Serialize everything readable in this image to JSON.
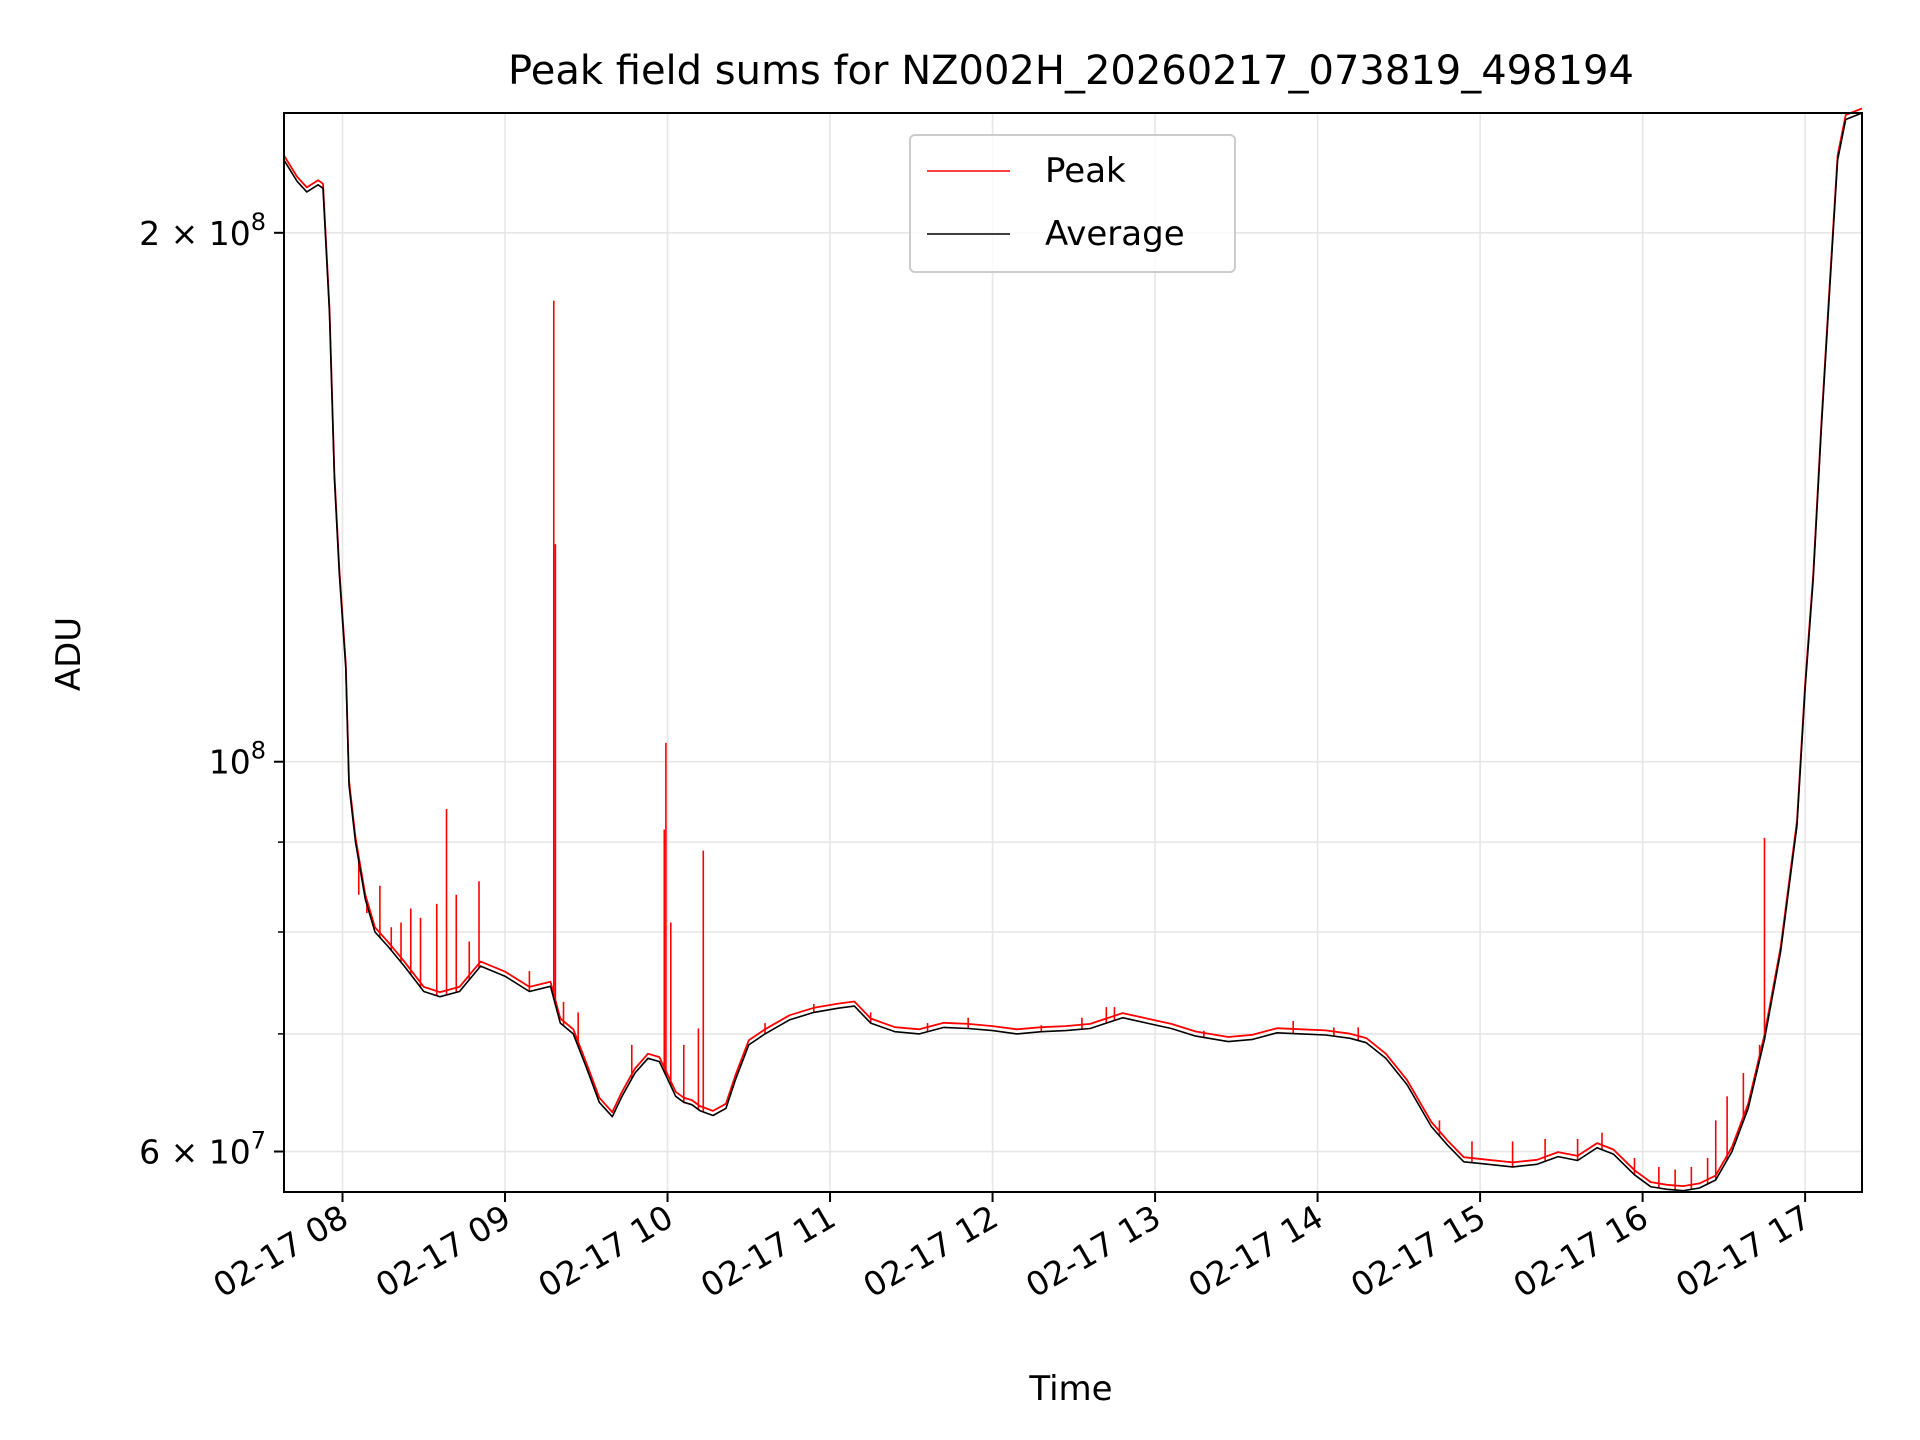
{
  "chart_data": {
    "type": "line",
    "title": "Peak field sums for NZ002H_20260217_073819_498194",
    "xlabel": "Time",
    "ylabel": "ADU",
    "yscale": "log",
    "xlim_hours": [
      7.64,
      17.35
    ],
    "ylim": [
      56900000,
      234000000
    ],
    "grid": true,
    "legend_position": "top-center",
    "x_ticks": [
      {
        "label": "02-17 08",
        "value": 8
      },
      {
        "label": "02-17 09",
        "value": 9
      },
      {
        "label": "02-17 10",
        "value": 10
      },
      {
        "label": "02-17 11",
        "value": 11
      },
      {
        "label": "02-17 12",
        "value": 12
      },
      {
        "label": "02-17 13",
        "value": 13
      },
      {
        "label": "02-17 14",
        "value": 14
      },
      {
        "label": "02-17 15",
        "value": 15
      },
      {
        "label": "02-17 16",
        "value": 16
      },
      {
        "label": "02-17 17",
        "value": 17
      }
    ],
    "y_major_ticks": [
      {
        "base": "2 × 10",
        "exp": "8",
        "value": 200000000
      },
      {
        "base": "10",
        "exp": "8",
        "value": 100000000
      },
      {
        "base": "6 × 10",
        "exp": "7",
        "value": 60000000
      }
    ],
    "y_minor_grid": [
      70000000,
      80000000,
      90000000
    ],
    "colors": {
      "peak": "#ff0000",
      "average": "#000000",
      "grid": "#e6e6e6"
    },
    "series": [
      {
        "name": "Average",
        "color": "#000000",
        "points": [
          [
            7.64,
            220000000
          ],
          [
            7.72,
            214000000
          ],
          [
            7.78,
            211000000
          ],
          [
            7.85,
            213000000
          ],
          [
            7.88,
            212000000
          ],
          [
            7.92,
            180000000
          ],
          [
            7.95,
            145000000
          ],
          [
            7.98,
            128000000
          ],
          [
            8.02,
            113000000
          ],
          [
            8.04,
            97000000
          ],
          [
            8.08,
            90000000
          ],
          [
            8.14,
            83500000
          ],
          [
            8.2,
            80000000
          ],
          [
            8.28,
            78500000
          ],
          [
            8.38,
            76500000
          ],
          [
            8.5,
            74000000
          ],
          [
            8.6,
            73500000
          ],
          [
            8.72,
            74000000
          ],
          [
            8.85,
            76500000
          ],
          [
            9.0,
            75500000
          ],
          [
            9.15,
            74000000
          ],
          [
            9.28,
            74500000
          ],
          [
            9.34,
            71000000
          ],
          [
            9.42,
            70000000
          ],
          [
            9.5,
            67000000
          ],
          [
            9.58,
            64000000
          ],
          [
            9.66,
            62800000
          ],
          [
            9.72,
            64500000
          ],
          [
            9.8,
            66500000
          ],
          [
            9.88,
            67800000
          ],
          [
            9.95,
            67500000
          ],
          [
            10.0,
            66000000
          ],
          [
            10.05,
            64500000
          ],
          [
            10.1,
            64000000
          ],
          [
            10.15,
            63800000
          ],
          [
            10.2,
            63300000
          ],
          [
            10.28,
            62900000
          ],
          [
            10.36,
            63500000
          ],
          [
            10.42,
            66000000
          ],
          [
            10.5,
            69000000
          ],
          [
            10.6,
            70000000
          ],
          [
            10.75,
            71300000
          ],
          [
            10.9,
            72000000
          ],
          [
            11.05,
            72400000
          ],
          [
            11.15,
            72600000
          ],
          [
            11.25,
            71000000
          ],
          [
            11.4,
            70200000
          ],
          [
            11.55,
            70000000
          ],
          [
            11.7,
            70600000
          ],
          [
            11.85,
            70500000
          ],
          [
            12.0,
            70300000
          ],
          [
            12.15,
            70000000
          ],
          [
            12.3,
            70200000
          ],
          [
            12.45,
            70300000
          ],
          [
            12.6,
            70500000
          ],
          [
            12.7,
            71000000
          ],
          [
            12.8,
            71500000
          ],
          [
            12.95,
            71000000
          ],
          [
            13.1,
            70500000
          ],
          [
            13.25,
            69800000
          ],
          [
            13.45,
            69300000
          ],
          [
            13.6,
            69500000
          ],
          [
            13.75,
            70100000
          ],
          [
            13.9,
            70000000
          ],
          [
            14.05,
            69900000
          ],
          [
            14.2,
            69600000
          ],
          [
            14.3,
            69200000
          ],
          [
            14.42,
            67800000
          ],
          [
            14.55,
            65500000
          ],
          [
            14.7,
            62000000
          ],
          [
            14.8,
            60500000
          ],
          [
            14.9,
            59200000
          ],
          [
            15.05,
            59000000
          ],
          [
            15.2,
            58800000
          ],
          [
            15.35,
            59000000
          ],
          [
            15.48,
            59600000
          ],
          [
            15.6,
            59300000
          ],
          [
            15.72,
            60300000
          ],
          [
            15.82,
            59800000
          ],
          [
            15.95,
            58200000
          ],
          [
            16.05,
            57300000
          ],
          [
            16.15,
            57100000
          ],
          [
            16.25,
            57000000
          ],
          [
            16.35,
            57200000
          ],
          [
            16.45,
            57800000
          ],
          [
            16.55,
            60000000
          ],
          [
            16.65,
            63500000
          ],
          [
            16.75,
            69500000
          ],
          [
            16.85,
            78000000
          ],
          [
            16.95,
            92000000
          ],
          [
            17.0,
            110000000
          ],
          [
            17.05,
            127000000
          ],
          [
            17.1,
            155000000
          ],
          [
            17.15,
            185000000
          ],
          [
            17.2,
            220000000
          ],
          [
            17.25,
            232000000
          ],
          [
            17.35,
            234000000
          ]
        ]
      },
      {
        "name": "Peak",
        "color": "#ff0000",
        "spikes": [
          [
            8.1,
            84000000
          ],
          [
            8.15,
            82000000
          ],
          [
            8.23,
            85000000
          ],
          [
            8.3,
            80500000
          ],
          [
            8.36,
            81000000
          ],
          [
            8.42,
            82500000
          ],
          [
            8.48,
            81500000
          ],
          [
            8.58,
            83000000
          ],
          [
            8.64,
            94000000
          ],
          [
            8.7,
            84000000
          ],
          [
            8.78,
            79000000
          ],
          [
            8.84,
            85500000
          ],
          [
            9.15,
            76000000
          ],
          [
            9.3,
            183000000
          ],
          [
            9.31,
            133000000
          ],
          [
            9.36,
            73000000
          ],
          [
            9.45,
            72000000
          ],
          [
            9.78,
            69000000
          ],
          [
            9.98,
            91500000
          ],
          [
            9.99,
            102500000
          ],
          [
            10.02,
            81000000
          ],
          [
            10.1,
            69000000
          ],
          [
            10.19,
            70500000
          ],
          [
            10.22,
            89000000
          ],
          [
            10.6,
            71000000
          ],
          [
            10.9,
            72800000
          ],
          [
            11.25,
            72000000
          ],
          [
            11.6,
            71000000
          ],
          [
            11.85,
            71500000
          ],
          [
            12.3,
            70800000
          ],
          [
            12.55,
            71500000
          ],
          [
            12.7,
            72500000
          ],
          [
            12.75,
            72500000
          ],
          [
            13.3,
            70300000
          ],
          [
            13.85,
            71200000
          ],
          [
            14.1,
            70600000
          ],
          [
            14.25,
            70600000
          ],
          [
            14.75,
            62500000
          ],
          [
            14.95,
            60800000
          ],
          [
            15.2,
            60800000
          ],
          [
            15.4,
            61000000
          ],
          [
            15.6,
            61000000
          ],
          [
            15.75,
            61500000
          ],
          [
            15.95,
            59500000
          ],
          [
            16.1,
            58800000
          ],
          [
            16.2,
            58600000
          ],
          [
            16.3,
            58800000
          ],
          [
            16.4,
            59500000
          ],
          [
            16.45,
            62500000
          ],
          [
            16.52,
            64500000
          ],
          [
            16.62,
            66500000
          ],
          [
            16.72,
            69000000
          ],
          [
            16.75,
            90500000
          ]
        ]
      }
    ]
  }
}
